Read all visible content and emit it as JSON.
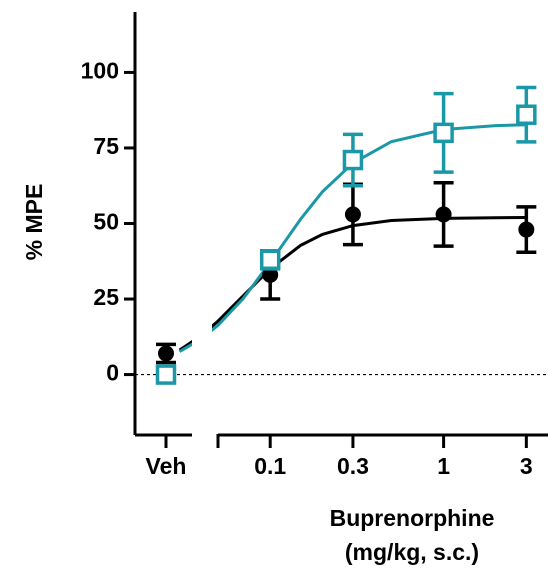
{
  "chart_data": {
    "type": "dose_response",
    "ylabel": "% MPE",
    "xlabel": [
      "Buprenorphine",
      "(mg/kg, s.c.)"
    ],
    "control_label": "Veh",
    "log_x": true,
    "xlim": [
      0.05,
      4
    ],
    "xticks": [
      0.1,
      0.3,
      1,
      3
    ],
    "ylim": [
      -20,
      120
    ],
    "yticks": [
      0,
      25,
      50,
      75,
      100
    ],
    "ref_line": 0,
    "x": [
      0.1,
      0.3,
      1,
      3
    ],
    "series": [
      {
        "color": "#000000",
        "marker": "circle",
        "control_value": 7,
        "control_error": 3,
        "values": [
          33,
          53,
          53,
          48
        ],
        "errors": [
          8,
          10,
          10.5,
          7.5
        ],
        "fit": {
          "x": [
            0.03,
            0.04,
            0.05,
            0.07,
            0.1,
            0.15,
            0.2,
            0.3,
            0.5,
            1,
            2,
            3
          ],
          "y": [
            8.1,
            12.9,
            17.7,
            26.1,
            35.0,
            42.8,
            46.4,
            49.3,
            51.0,
            51.7,
            51.9,
            52.0
          ]
        }
      },
      {
        "color": "#1b98a8",
        "marker": "square",
        "control_value": 0,
        "control_error": 1,
        "values": [
          38,
          71,
          80,
          86
        ],
        "errors": [
          3,
          8.5,
          13,
          9
        ],
        "fit": {
          "x": [
            0.03,
            0.04,
            0.05,
            0.07,
            0.1,
            0.15,
            0.2,
            0.3,
            0.5,
            1,
            2,
            3
          ],
          "y": [
            7.6,
            11.8,
            16.3,
            25.2,
            37.1,
            51.5,
            60.5,
            70.0,
            77.1,
            81.1,
            82.4,
            82.7
          ]
        }
      }
    ]
  }
}
